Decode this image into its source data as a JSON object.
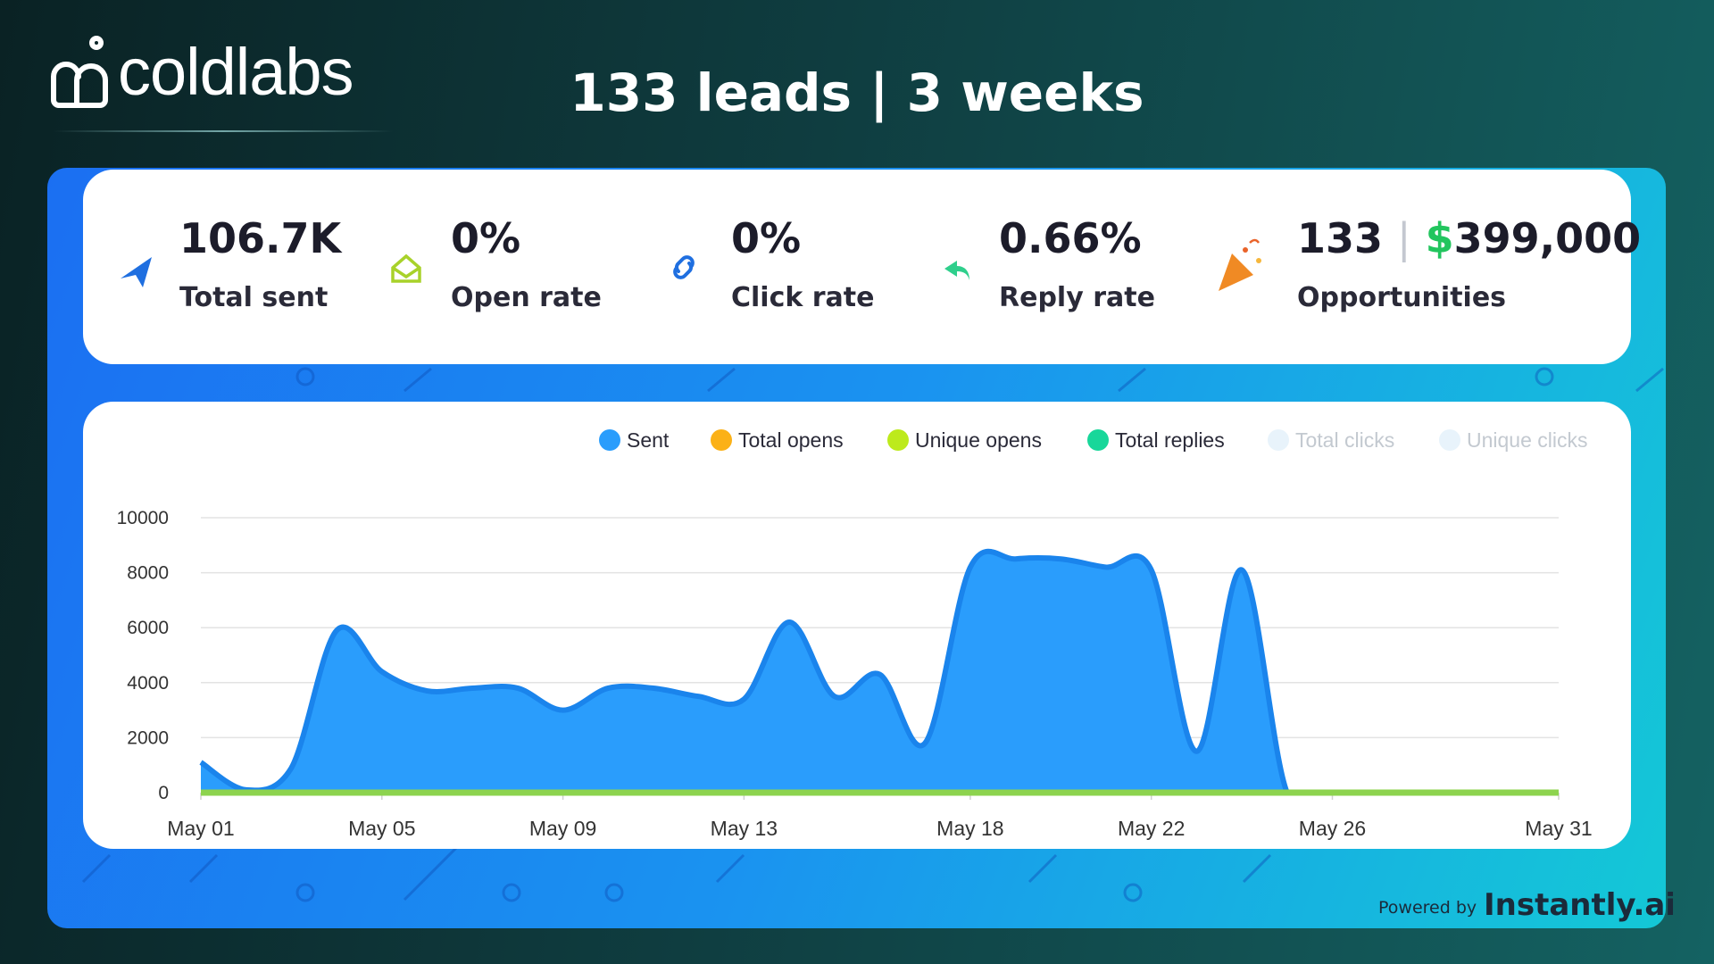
{
  "header": {
    "brand": "coldlabs",
    "title": "133 leads | 3 weeks"
  },
  "stats": [
    {
      "value": "106.7K",
      "label": "Total sent"
    },
    {
      "value": "0%",
      "label": "Open rate"
    },
    {
      "value": "0%",
      "label": "Click rate"
    },
    {
      "value": "0.66%",
      "label": "Reply rate"
    },
    {
      "count": "133",
      "separator": "|",
      "currency": "$",
      "value": "399,000",
      "label": "Opportunities"
    }
  ],
  "footer": {
    "prefix": "Powered by",
    "brand": "Instantly.ai"
  },
  "chart_data": {
    "type": "area",
    "categories": [
      "May 01",
      null,
      null,
      null,
      "May 05",
      null,
      null,
      null,
      "May 09",
      null,
      null,
      null,
      "May 13",
      null,
      null,
      null,
      null,
      "May 18",
      null,
      null,
      null,
      "May 22",
      null,
      null,
      null,
      "May 26",
      null,
      null,
      null,
      null,
      "May 31"
    ],
    "series": [
      {
        "name": "Sent",
        "color": "#2a9dfc",
        "values": [
          1100,
          100,
          900,
          5900,
          4400,
          3700,
          3800,
          3800,
          3000,
          3800,
          3800,
          3500,
          3400,
          6200,
          3500,
          4300,
          1800,
          8200,
          8500,
          8500,
          8200,
          8100,
          1500,
          8100,
          0,
          0,
          0,
          0,
          0,
          0,
          0
        ]
      },
      {
        "name": "Total opens",
        "color": "#fbb117",
        "values": [
          0,
          0,
          0,
          0,
          0,
          0,
          0,
          0,
          0,
          0,
          0,
          0,
          0,
          0,
          0,
          0,
          0,
          0,
          0,
          0,
          0,
          0,
          0,
          0,
          0,
          0,
          0,
          0,
          0,
          0,
          0
        ]
      },
      {
        "name": "Unique opens",
        "color": "#bdea1c",
        "values": [
          0,
          0,
          0,
          0,
          0,
          0,
          0,
          0,
          0,
          0,
          0,
          0,
          0,
          0,
          0,
          0,
          0,
          0,
          0,
          0,
          0,
          0,
          0,
          0,
          0,
          0,
          0,
          0,
          0,
          0,
          0
        ]
      },
      {
        "name": "Total replies",
        "color": "#18d79a",
        "values": [
          0,
          0,
          0,
          0,
          0,
          0,
          0,
          0,
          0,
          0,
          0,
          0,
          0,
          0,
          0,
          0,
          0,
          0,
          0,
          0,
          0,
          0,
          0,
          0,
          0,
          0,
          0,
          0,
          0,
          0,
          0
        ]
      },
      {
        "name": "Total clicks",
        "color": "#e8f3fb",
        "hidden": true
      },
      {
        "name": "Unique clicks",
        "color": "#e8f3fb",
        "hidden": true
      }
    ],
    "ylim": [
      0,
      10000
    ],
    "yticks": [
      0,
      2000,
      4000,
      6000,
      8000,
      10000
    ],
    "grid": true,
    "legend": "top-right"
  }
}
